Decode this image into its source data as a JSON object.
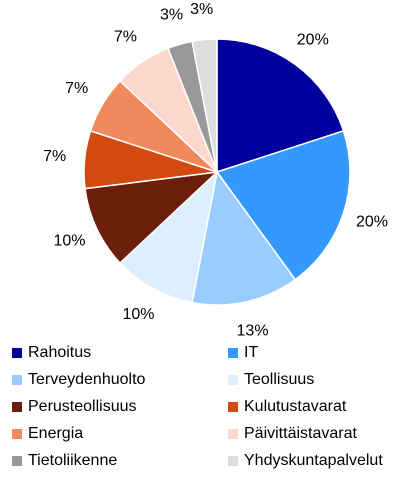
{
  "chart_data": {
    "type": "pie",
    "categories": [
      "Rahoitus",
      "IT",
      "Terveydenhuolto",
      "Teollisuus",
      "Perusteollisuus",
      "Kulutustavarat",
      "Energia",
      "Päivittäistavarat",
      "Tietoliikenne",
      "Yhdyskuntapalvelut"
    ],
    "values": [
      20,
      20,
      13,
      10,
      10,
      7,
      7,
      7,
      3,
      3
    ],
    "value_labels": [
      "20%",
      "20%",
      "13%",
      "10%",
      "10%",
      "7%",
      "7%",
      "7%",
      "3%",
      "3%"
    ],
    "colors": [
      "#00009c",
      "#3399ff",
      "#99ccff",
      "#ddeeff",
      "#6b1f0a",
      "#d24a0e",
      "#f08a5d",
      "#fbd8cc",
      "#999999",
      "#dddddd"
    ]
  }
}
